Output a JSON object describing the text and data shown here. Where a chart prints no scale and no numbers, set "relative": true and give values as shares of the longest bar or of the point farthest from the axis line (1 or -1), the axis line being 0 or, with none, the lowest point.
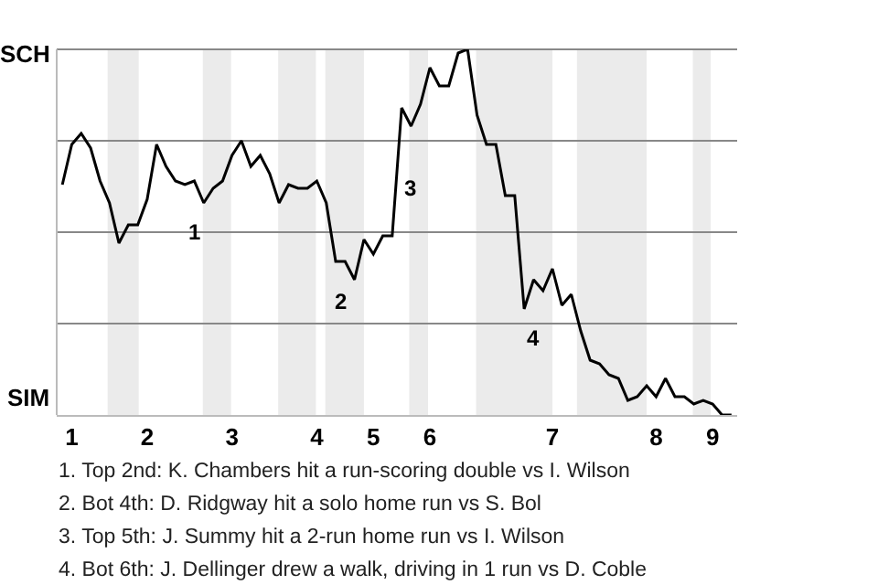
{
  "chart_data": {
    "type": "line",
    "relative": true,
    "categories": [
      null,
      "1",
      null,
      null,
      null,
      null,
      null,
      null,
      null,
      "2",
      null,
      null,
      null,
      null,
      null,
      null,
      null,
      null,
      "3",
      null,
      null,
      null,
      null,
      null,
      null,
      null,
      null,
      "4",
      null,
      null,
      null,
      null,
      null,
      "5",
      null,
      null,
      null,
      null,
      null,
      "6",
      null,
      null,
      null,
      null,
      null,
      null,
      null,
      null,
      null,
      null,
      null,
      null,
      "7",
      null,
      null,
      null,
      null,
      null,
      null,
      null,
      null,
      null,
      null,
      "8",
      null,
      null,
      null,
      null,
      null,
      "9",
      null,
      null
    ],
    "series": [
      {
        "color": "#000000",
        "values": [
          0.63,
          0.74,
          0.77,
          0.73,
          0.64,
          0.58,
          0.47,
          0.52,
          0.52,
          0.59,
          0.74,
          0.68,
          0.64,
          0.63,
          0.64,
          0.58,
          0.62,
          0.64,
          0.71,
          0.75,
          0.68,
          0.71,
          0.66,
          0.58,
          0.63,
          0.62,
          0.62,
          0.64,
          0.58,
          0.42,
          0.42,
          0.37,
          0.48,
          0.44,
          0.49,
          0.49,
          0.84,
          0.79,
          0.85,
          0.95,
          0.9,
          0.9,
          0.99,
          1,
          0.82,
          0.74,
          0.74,
          0.6,
          0.6,
          0.29,
          0.37,
          0.34,
          0.4,
          0.3,
          0.33,
          0.23,
          0.15,
          0.14,
          0.11,
          0.1,
          0.04,
          0.05,
          0.08,
          0.05,
          0.1,
          0.05,
          0.05,
          0.03,
          0.04,
          0.03,
          0,
          0
        ]
      }
    ],
    "grid": "y",
    "marker": "none",
    "line_style": "solid",
    "annotations": [
      "SCH",
      "SIM",
      "1",
      "2",
      "3",
      "4",
      "1. Top 2nd: K. Chambers hit a run-scoring double vs I. Wilson",
      "2. Bot 4th: D. Ridgway hit a solo home run vs S. Bol",
      "3. Top 5th: J. Summy hit a 2-run home run vs I. Wilson",
      "4. Bot 6th: J. Dellinger drew a walk, driving in 1 run vs D. Coble"
    ]
  }
}
